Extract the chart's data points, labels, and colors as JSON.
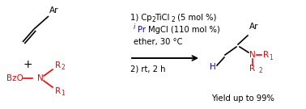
{
  "bg_color": "#ffffff",
  "black": "#000000",
  "red": "#ff0000",
  "blue": "#0000ff",
  "figsize": [
    3.78,
    1.35
  ],
  "dpi": 100,
  "yield_text": "Yield up to 99%",
  "conditions_line3": "ether, 30 °C",
  "conditions_line4": "2) rt, 2 h"
}
